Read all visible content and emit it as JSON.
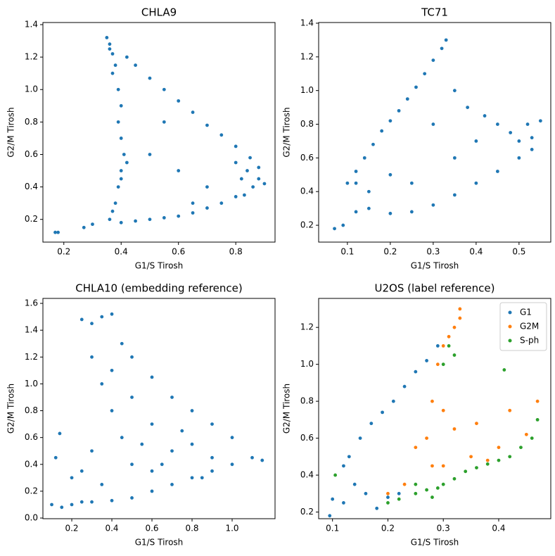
{
  "chart_data": [
    {
      "type": "scatter",
      "title": "CHLA9",
      "x_label": "G1/S Tirosh",
      "y_label": "G2/M Tirosh",
      "xlim": [
        0.127,
        0.937
      ],
      "ylim": [
        0.06,
        1.413
      ],
      "xticks": [
        0.2,
        0.4,
        0.6,
        0.8
      ],
      "yticks": [
        0.2,
        0.4,
        0.6,
        0.8,
        {
          "value": 1,
          "label": "1.0"
        },
        1.2,
        1.4
      ],
      "series": [
        {
          "color": "#1f77b4",
          "x": [
            0.35,
            0.36,
            0.37,
            0.38,
            0.36,
            0.37,
            0.39,
            0.4,
            0.39,
            0.4,
            0.41,
            0.4,
            0.39,
            0.38,
            0.37,
            0.36,
            0.4,
            0.42,
            0.42,
            0.45,
            0.5,
            0.55,
            0.6,
            0.65,
            0.7,
            0.75,
            0.8,
            0.85,
            0.88,
            0.82,
            0.84,
            0.86,
            0.88,
            0.8,
            0.83,
            0.9,
            0.4,
            0.45,
            0.5,
            0.55,
            0.6,
            0.65,
            0.7,
            0.75,
            0.8,
            0.5,
            0.6,
            0.65,
            0.7,
            0.55,
            0.17,
            0.18,
            0.27,
            0.3
          ],
          "values": [
            1.32,
            1.28,
            1.22,
            1.15,
            1.25,
            1.1,
            1.0,
            0.9,
            0.8,
            0.7,
            0.6,
            0.5,
            0.4,
            0.3,
            0.25,
            0.2,
            0.45,
            0.55,
            1.2,
            1.15,
            1.07,
            1.0,
            0.93,
            0.86,
            0.78,
            0.72,
            0.65,
            0.58,
            0.52,
            0.45,
            0.5,
            0.4,
            0.45,
            0.55,
            0.35,
            0.42,
            0.18,
            0.19,
            0.2,
            0.21,
            0.22,
            0.24,
            0.27,
            0.3,
            0.34,
            0.6,
            0.5,
            0.3,
            0.4,
            0.8,
            0.12,
            0.12,
            0.15,
            0.17
          ]
        }
      ]
    },
    {
      "type": "scatter",
      "title": "TC71",
      "x_label": "G1/S Tirosh",
      "y_label": "G2/M Tirosh",
      "xlim": [
        0.033,
        0.574
      ],
      "ylim": [
        0.1,
        1.404
      ],
      "xticks": [
        0.1,
        0.2,
        0.3,
        0.4,
        0.5
      ],
      "yticks": [
        0.2,
        0.4,
        0.6,
        0.8,
        {
          "value": 1,
          "label": "1.0"
        },
        1.2,
        1.4
      ],
      "series": [
        {
          "color": "#1f77b4",
          "x": [
            0.1,
            0.12,
            0.14,
            0.16,
            0.18,
            0.2,
            0.22,
            0.24,
            0.26,
            0.28,
            0.3,
            0.32,
            0.33,
            0.07,
            0.09,
            0.12,
            0.15,
            0.2,
            0.25,
            0.3,
            0.35,
            0.4,
            0.45,
            0.5,
            0.53,
            0.35,
            0.38,
            0.42,
            0.45,
            0.48,
            0.5,
            0.52,
            0.55,
            0.53,
            0.2,
            0.25,
            0.3,
            0.35,
            0.4,
            0.15,
            0.12
          ],
          "values": [
            0.45,
            0.52,
            0.6,
            0.68,
            0.76,
            0.82,
            0.88,
            0.95,
            1.02,
            1.1,
            1.18,
            1.25,
            1.3,
            0.18,
            0.2,
            0.28,
            0.3,
            0.27,
            0.28,
            0.32,
            0.38,
            0.45,
            0.52,
            0.6,
            0.65,
            1.0,
            0.9,
            0.85,
            0.8,
            0.75,
            0.7,
            0.8,
            0.82,
            0.72,
            0.5,
            0.45,
            0.8,
            0.6,
            0.7,
            0.4,
            0.45
          ]
        }
      ]
    },
    {
      "type": "scatter",
      "title": "CHLA10 (embedding reference)",
      "x_label": "G1/S Tirosh",
      "y_label": "G2/M Tirosh",
      "xlim": [
        0.056,
        1.214
      ],
      "ylim": [
        -0.005,
        1.637
      ],
      "xticks": [
        0.2,
        0.4,
        0.6,
        0.8,
        {
          "value": 1,
          "label": "1.0"
        }
      ],
      "yticks": [
        {
          "value": 0,
          "label": "0.0"
        },
        0.2,
        0.4,
        0.6,
        0.8,
        {
          "value": 1,
          "label": "1.0"
        },
        1.2,
        1.4,
        1.6
      ],
      "series": [
        {
          "color": "#1f77b4",
          "x": [
            0.25,
            0.3,
            0.35,
            0.4,
            0.45,
            0.5,
            0.6,
            0.7,
            0.8,
            0.9,
            1.0,
            1.1,
            1.15,
            0.15,
            0.2,
            0.25,
            0.3,
            0.4,
            0.5,
            0.6,
            0.7,
            0.8,
            0.9,
            1.0,
            0.3,
            0.35,
            0.4,
            0.45,
            0.3,
            0.25,
            0.5,
            0.6,
            0.7,
            0.8,
            0.9,
            0.5,
            0.6,
            0.35,
            0.2,
            0.4,
            0.55,
            0.75,
            0.65,
            0.85,
            0.1,
            0.14,
            0.12
          ],
          "values": [
            1.48,
            1.45,
            1.5,
            1.52,
            1.3,
            1.2,
            1.05,
            0.9,
            0.8,
            0.7,
            0.6,
            0.45,
            0.43,
            0.08,
            0.1,
            0.12,
            0.12,
            0.13,
            0.15,
            0.2,
            0.25,
            0.3,
            0.35,
            0.4,
            1.2,
            1.0,
            0.8,
            0.6,
            0.5,
            0.35,
            0.9,
            0.7,
            0.5,
            0.55,
            0.45,
            0.4,
            0.35,
            0.25,
            0.3,
            1.1,
            0.55,
            0.65,
            0.4,
            0.3,
            0.1,
            0.63,
            0.45
          ]
        }
      ]
    },
    {
      "type": "scatter",
      "title": "U2OS (label reference)",
      "x_label": "G1/S Tirosh",
      "y_label": "G2/M Tirosh",
      "xlim": [
        0.075,
        0.494
      ],
      "ylim": [
        0.164,
        1.357
      ],
      "xticks": [
        0.1,
        0.2,
        0.3,
        0.4
      ],
      "yticks": [
        0.2,
        0.4,
        0.6,
        0.8,
        {
          "value": 1,
          "label": "1.0"
        },
        1.2
      ],
      "legend": "upper right",
      "series": [
        {
          "name": "G1",
          "color": "#1f77b4",
          "x": [
            0.095,
            0.1,
            0.12,
            0.13,
            0.15,
            0.17,
            0.19,
            0.21,
            0.23,
            0.25,
            0.27,
            0.29,
            0.16,
            0.14,
            0.12,
            0.18,
            0.2,
            0.22
          ],
          "values": [
            0.18,
            0.27,
            0.45,
            0.5,
            0.6,
            0.68,
            0.74,
            0.8,
            0.88,
            0.96,
            1.02,
            1.1,
            0.3,
            0.35,
            0.25,
            0.22,
            0.28,
            0.3
          ]
        },
        {
          "name": "G2M",
          "color": "#ff7f0e",
          "x": [
            0.29,
            0.3,
            0.31,
            0.32,
            0.33,
            0.33,
            0.28,
            0.3,
            0.27,
            0.32,
            0.25,
            0.3,
            0.35,
            0.4,
            0.45,
            0.47,
            0.2,
            0.23,
            0.28,
            0.36,
            0.42,
            0.38
          ],
          "values": [
            1.0,
            1.1,
            1.15,
            1.2,
            1.3,
            1.25,
            0.8,
            0.75,
            0.6,
            0.65,
            0.55,
            0.45,
            0.5,
            0.55,
            0.62,
            0.8,
            0.3,
            0.35,
            0.45,
            0.68,
            0.75,
            0.48
          ]
        },
        {
          "name": "S-ph",
          "color": "#2ca02c",
          "x": [
            0.105,
            0.2,
            0.22,
            0.25,
            0.27,
            0.29,
            0.3,
            0.32,
            0.34,
            0.36,
            0.38,
            0.4,
            0.42,
            0.44,
            0.46,
            0.47,
            0.3,
            0.31,
            0.32,
            0.41,
            0.25,
            0.28
          ],
          "values": [
            0.4,
            0.25,
            0.27,
            0.3,
            0.32,
            0.33,
            0.35,
            0.38,
            0.42,
            0.44,
            0.46,
            0.48,
            0.5,
            0.55,
            0.6,
            0.7,
            1.0,
            1.1,
            1.05,
            0.97,
            0.35,
            0.28
          ]
        }
      ]
    }
  ]
}
